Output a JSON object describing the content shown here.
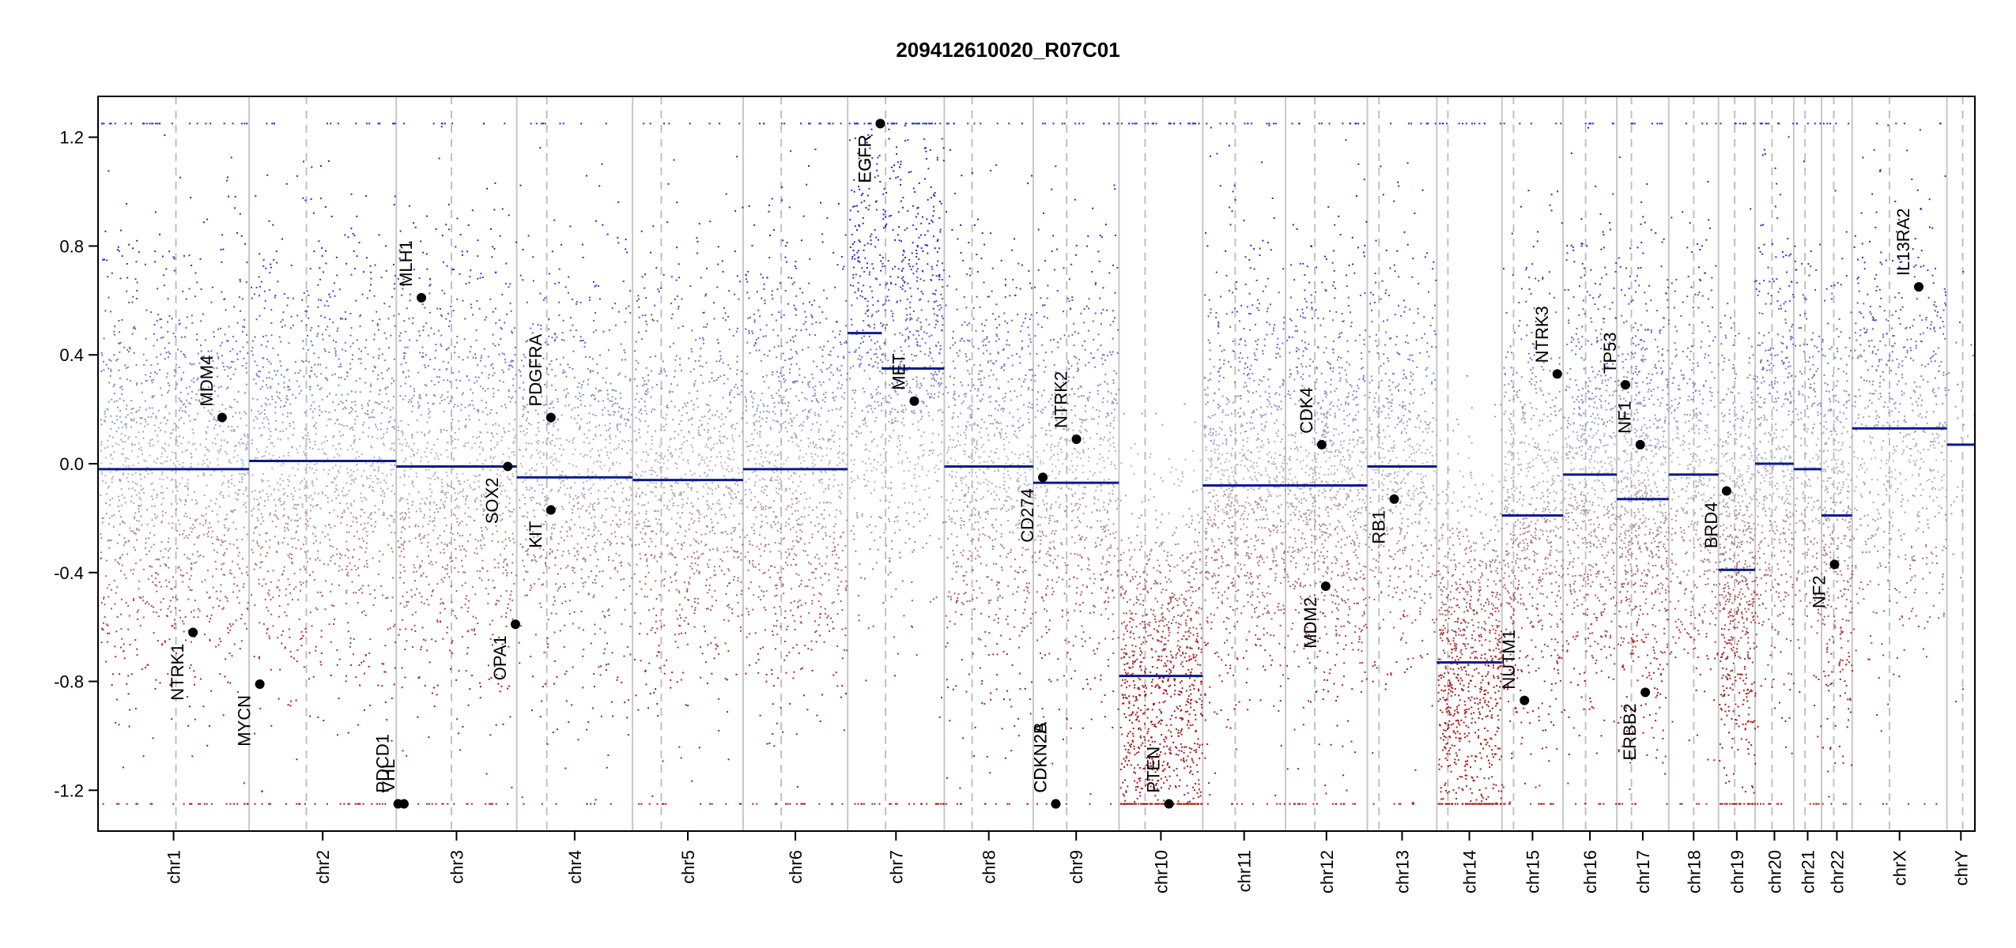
{
  "chart_data": {
    "type": "scatter",
    "title": "209412610020_R07C01",
    "xlabel": "",
    "ylabel": "",
    "ylim": [
      -1.35,
      1.35
    ],
    "yticks": [
      -1.2,
      -0.8,
      -0.4,
      0.0,
      0.4,
      0.8,
      1.2
    ],
    "ytick_labels": [
      "-1.2",
      "-0.8",
      "-0.4",
      "0.0",
      "0.4",
      "0.8",
      "1.2"
    ],
    "clip_value": 1.25,
    "grid": false,
    "colors": {
      "positive_points": "#2626c8",
      "negative_points": "#a31a1a",
      "neutral_points": "#b8b8c8",
      "segment": "#0a1a8c",
      "gene_dot": "#000000",
      "chromosome_border": "#c8c8c8",
      "centromere": "#c0c0c0"
    },
    "chromosomes": [
      {
        "name": "chr1",
        "start": 0.0,
        "end": 0.0805,
        "centromere": 0.0415
      },
      {
        "name": "chr2",
        "start": 0.0805,
        "end": 0.1589,
        "centromere": 0.111
      },
      {
        "name": "chr3",
        "start": 0.1589,
        "end": 0.2231,
        "centromere": 0.1883
      },
      {
        "name": "chr4",
        "start": 0.2231,
        "end": 0.2848,
        "centromere": 0.2391
      },
      {
        "name": "chr5",
        "start": 0.2848,
        "end": 0.3437,
        "centromere": 0.3001
      },
      {
        "name": "chr6",
        "start": 0.3437,
        "end": 0.3994,
        "centromere": 0.364
      },
      {
        "name": "chr7",
        "start": 0.3994,
        "end": 0.4509,
        "centromere": 0.4196
      },
      {
        "name": "chr8",
        "start": 0.4509,
        "end": 0.4983,
        "centromere": 0.4657
      },
      {
        "name": "chr9",
        "start": 0.4983,
        "end": 0.544,
        "centromere": 0.5161
      },
      {
        "name": "chr10",
        "start": 0.544,
        "end": 0.5886,
        "centromere": 0.5579
      },
      {
        "name": "chr11",
        "start": 0.5886,
        "end": 0.6327,
        "centromere": 0.6059
      },
      {
        "name": "chr12",
        "start": 0.6327,
        "end": 0.6763,
        "centromere": 0.6483
      },
      {
        "name": "chr13",
        "start": 0.6763,
        "end": 0.7133,
        "centromere": 0.6825
      },
      {
        "name": "chr14",
        "start": 0.7133,
        "end": 0.748,
        "centromere": 0.7192
      },
      {
        "name": "chr15",
        "start": 0.748,
        "end": 0.7806,
        "centromere": 0.7542
      },
      {
        "name": "chr16",
        "start": 0.7806,
        "end": 0.8092,
        "centromere": 0.7926
      },
      {
        "name": "chr17",
        "start": 0.8092,
        "end": 0.8369,
        "centromere": 0.817
      },
      {
        "name": "chr18",
        "start": 0.8369,
        "end": 0.8634,
        "centromere": 0.8502
      },
      {
        "name": "chr19",
        "start": 0.8634,
        "end": 0.8829,
        "centromere": 0.872
      },
      {
        "name": "chr20",
        "start": 0.8829,
        "end": 0.9035,
        "centromere": 0.8919
      },
      {
        "name": "chr21",
        "start": 0.9035,
        "end": 0.9183,
        "centromere": 0.9095
      },
      {
        "name": "chr22",
        "start": 0.9183,
        "end": 0.9346,
        "centromere": 0.9248
      },
      {
        "name": "chrX",
        "start": 0.9346,
        "end": 0.9851,
        "centromere": 0.9545
      },
      {
        "name": "chrY",
        "start": 0.9851,
        "end": 1.0,
        "centromere": 0.9935
      }
    ],
    "segments": [
      {
        "chr": "chr1",
        "x0": 0.0,
        "x1": 0.0805,
        "value": -0.02
      },
      {
        "chr": "chr2",
        "x0": 0.0805,
        "x1": 0.1589,
        "value": 0.01
      },
      {
        "chr": "chr3",
        "x0": 0.1589,
        "x1": 0.2231,
        "value": -0.01
      },
      {
        "chr": "chr4",
        "x0": 0.2231,
        "x1": 0.2848,
        "value": -0.05
      },
      {
        "chr": "chr5",
        "x0": 0.2848,
        "x1": 0.3437,
        "value": -0.06
      },
      {
        "chr": "chr6",
        "x0": 0.3437,
        "x1": 0.3994,
        "value": -0.02
      },
      {
        "chr": "chr7",
        "x0": 0.3994,
        "x1": 0.4176,
        "value": 0.48
      },
      {
        "chr": "chr7",
        "x0": 0.4176,
        "x1": 0.4509,
        "value": 0.35
      },
      {
        "chr": "chr8",
        "x0": 0.4509,
        "x1": 0.4983,
        "value": -0.01
      },
      {
        "chr": "chr9",
        "x0": 0.4983,
        "x1": 0.544,
        "value": -0.07
      },
      {
        "chr": "chr10",
        "x0": 0.544,
        "x1": 0.5886,
        "value": -0.78
      },
      {
        "chr": "chr11",
        "x0": 0.5886,
        "x1": 0.6327,
        "value": -0.08
      },
      {
        "chr": "chr12",
        "x0": 0.6327,
        "x1": 0.6763,
        "value": -0.08
      },
      {
        "chr": "chr13",
        "x0": 0.6763,
        "x1": 0.7133,
        "value": -0.01
      },
      {
        "chr": "chr14",
        "x0": 0.7133,
        "x1": 0.748,
        "value": -0.73
      },
      {
        "chr": "chr15",
        "x0": 0.748,
        "x1": 0.7806,
        "value": -0.19
      },
      {
        "chr": "chr16",
        "x0": 0.7806,
        "x1": 0.8092,
        "value": -0.04
      },
      {
        "chr": "chr17",
        "x0": 0.8092,
        "x1": 0.8369,
        "value": -0.13
      },
      {
        "chr": "chr18",
        "x0": 0.8369,
        "x1": 0.8634,
        "value": -0.04
      },
      {
        "chr": "chr19",
        "x0": 0.8634,
        "x1": 0.8829,
        "value": -0.39
      },
      {
        "chr": "chr20",
        "x0": 0.8829,
        "x1": 0.9035,
        "value": 0.0
      },
      {
        "chr": "chr21",
        "x0": 0.9035,
        "x1": 0.9183,
        "value": -0.02
      },
      {
        "chr": "chr22",
        "x0": 0.9183,
        "x1": 0.9346,
        "value": -0.19
      },
      {
        "chr": "chrX",
        "x0": 0.9346,
        "x1": 0.9851,
        "value": 0.13
      },
      {
        "chr": "chrY",
        "x0": 0.9851,
        "x1": 1.0,
        "value": 0.07
      }
    ],
    "genes": [
      {
        "name": "NTRK1",
        "x": 0.0506,
        "value": -0.62,
        "label_side": "below"
      },
      {
        "name": "MDM4",
        "x": 0.0661,
        "value": 0.17,
        "label_side": "above"
      },
      {
        "name": "MYCN",
        "x": 0.0862,
        "value": -0.81,
        "label_side": "below"
      },
      {
        "name": "PDCD1",
        "x": 0.1599,
        "value": -1.25,
        "label_side": "above"
      },
      {
        "name": "VHL",
        "x": 0.163,
        "value": -1.25,
        "label_side": "above"
      },
      {
        "name": "MLH1",
        "x": 0.1723,
        "value": 0.61,
        "label_side": "above"
      },
      {
        "name": "SOX2",
        "x": 0.2183,
        "value": -0.01,
        "label_side": "below"
      },
      {
        "name": "OPA1",
        "x": 0.2224,
        "value": -0.59,
        "label_side": "below"
      },
      {
        "name": "PDGFRA",
        "x": 0.2413,
        "value": 0.17,
        "label_side": "above"
      },
      {
        "name": "KIT",
        "x": 0.2413,
        "value": -0.17,
        "label_side": "below"
      },
      {
        "name": "EGFR",
        "x": 0.4168,
        "value": 1.25,
        "label_side": "below"
      },
      {
        "name": "EGFR",
        "x": 0.4168,
        "value": 1.25,
        "label_side": "below"
      },
      {
        "name": "MET",
        "x": 0.4349,
        "value": 0.23,
        "label_side": "above"
      },
      {
        "name": "CD274",
        "x": 0.5034,
        "value": -0.05,
        "label_side": "below"
      },
      {
        "name": "CDKN2A",
        "x": 0.5103,
        "value": -1.25,
        "label_side": "above"
      },
      {
        "name": "CDKN2B",
        "x": 0.5103,
        "value": -1.25,
        "label_side": "above"
      },
      {
        "name": "NTRK2",
        "x": 0.5213,
        "value": 0.09,
        "label_side": "above"
      },
      {
        "name": "PTEN",
        "x": 0.5706,
        "value": -1.25,
        "label_side": "above"
      },
      {
        "name": "CDK4",
        "x": 0.652,
        "value": 0.07,
        "label_side": "above"
      },
      {
        "name": "MDM2",
        "x": 0.6541,
        "value": -0.45,
        "label_side": "below"
      },
      {
        "name": "RB1",
        "x": 0.6906,
        "value": -0.13,
        "label_side": "below"
      },
      {
        "name": "NUTM1",
        "x": 0.76,
        "value": -0.87,
        "label_side": "above"
      },
      {
        "name": "NTRK3",
        "x": 0.7775,
        "value": 0.33,
        "label_side": "above"
      },
      {
        "name": "TP53",
        "x": 0.8138,
        "value": 0.29,
        "label_side": "above"
      },
      {
        "name": "NF1",
        "x": 0.8217,
        "value": 0.07,
        "label_side": "above"
      },
      {
        "name": "ERBB2",
        "x": 0.8244,
        "value": -0.84,
        "label_side": "below"
      },
      {
        "name": "BRD4",
        "x": 0.8677,
        "value": -0.1,
        "label_side": "below"
      },
      {
        "name": "NF2",
        "x": 0.9252,
        "value": -0.37,
        "label_side": "below"
      },
      {
        "name": "IL13RA2",
        "x": 0.9701,
        "value": 0.65,
        "label_side": "above"
      }
    ],
    "point_profiles": [
      {
        "chr": "chr1",
        "x0": 0.0,
        "x1": 0.0805,
        "center": -0.02,
        "spread": 0.42,
        "n": 1400,
        "clip_rate": 0.03
      },
      {
        "chr": "chr2",
        "x0": 0.0805,
        "x1": 0.1589,
        "center": 0.01,
        "spread": 0.42,
        "n": 1350,
        "clip_rate": 0.03
      },
      {
        "chr": "chr3",
        "x0": 0.1589,
        "x1": 0.2231,
        "center": -0.01,
        "spread": 0.42,
        "n": 1100,
        "clip_rate": 0.03
      },
      {
        "chr": "chr4",
        "x0": 0.2231,
        "x1": 0.2848,
        "center": -0.05,
        "spread": 0.4,
        "n": 950,
        "clip_rate": 0.02
      },
      {
        "chr": "chr5",
        "x0": 0.2848,
        "x1": 0.3437,
        "center": -0.06,
        "spread": 0.4,
        "n": 1000,
        "clip_rate": 0.02
      },
      {
        "chr": "chr6",
        "x0": 0.3437,
        "x1": 0.3994,
        "center": -0.02,
        "spread": 0.42,
        "n": 1050,
        "clip_rate": 0.02
      },
      {
        "chr": "chr7",
        "x0": 0.3994,
        "x1": 0.4509,
        "center": 0.4,
        "spread": 0.45,
        "n": 1000,
        "clip_rate": 0.05
      },
      {
        "chr": "chr8",
        "x0": 0.4509,
        "x1": 0.4983,
        "center": -0.01,
        "spread": 0.42,
        "n": 850,
        "clip_rate": 0.02
      },
      {
        "chr": "chr9",
        "x0": 0.4983,
        "x1": 0.544,
        "center": -0.07,
        "spread": 0.42,
        "n": 750,
        "clip_rate": 0.02
      },
      {
        "chr": "chr10",
        "x0": 0.544,
        "x1": 0.5886,
        "center": -0.78,
        "spread": 0.35,
        "n": 1100,
        "clip_rate": 0.05
      },
      {
        "chr": "chr11",
        "x0": 0.5886,
        "x1": 0.6327,
        "center": -0.08,
        "spread": 0.42,
        "n": 1000,
        "clip_rate": 0.02
      },
      {
        "chr": "chr12",
        "x0": 0.6327,
        "x1": 0.6763,
        "center": -0.08,
        "spread": 0.42,
        "n": 1000,
        "clip_rate": 0.02
      },
      {
        "chr": "chr13",
        "x0": 0.6763,
        "x1": 0.7133,
        "center": -0.01,
        "spread": 0.42,
        "n": 600,
        "clip_rate": 0.02
      },
      {
        "chr": "chr14",
        "x0": 0.7133,
        "x1": 0.748,
        "center": -0.73,
        "spread": 0.35,
        "n": 900,
        "clip_rate": 0.04
      },
      {
        "chr": "chr15",
        "x0": 0.748,
        "x1": 0.7806,
        "center": -0.19,
        "spread": 0.42,
        "n": 700,
        "clip_rate": 0.02
      },
      {
        "chr": "chr16",
        "x0": 0.7806,
        "x1": 0.8092,
        "center": -0.04,
        "spread": 0.42,
        "n": 700,
        "clip_rate": 0.02
      },
      {
        "chr": "chr17",
        "x0": 0.8092,
        "x1": 0.8369,
        "center": -0.13,
        "spread": 0.42,
        "n": 800,
        "clip_rate": 0.02
      },
      {
        "chr": "chr18",
        "x0": 0.8369,
        "x1": 0.8634,
        "center": -0.04,
        "spread": 0.42,
        "n": 450,
        "clip_rate": 0.02
      },
      {
        "chr": "chr19",
        "x0": 0.8634,
        "x1": 0.8829,
        "center": -0.39,
        "spread": 0.42,
        "n": 650,
        "clip_rate": 0.03
      },
      {
        "chr": "chr20",
        "x0": 0.8829,
        "x1": 0.9035,
        "center": 0.0,
        "spread": 0.42,
        "n": 500,
        "clip_rate": 0.02
      },
      {
        "chr": "chr21",
        "x0": 0.9035,
        "x1": 0.9183,
        "center": -0.02,
        "spread": 0.42,
        "n": 220,
        "clip_rate": 0.02
      },
      {
        "chr": "chr22",
        "x0": 0.9183,
        "x1": 0.9346,
        "center": -0.19,
        "spread": 0.42,
        "n": 400,
        "clip_rate": 0.02
      },
      {
        "chr": "chrX",
        "x0": 0.9346,
        "x1": 0.9851,
        "center": 0.13,
        "spread": 0.4,
        "n": 700,
        "clip_rate": 0.02
      },
      {
        "chr": "chrY",
        "x0": 0.9851,
        "x1": 1.0,
        "center": 0.07,
        "spread": 0.3,
        "n": 30,
        "clip_rate": 0.0
      }
    ]
  }
}
